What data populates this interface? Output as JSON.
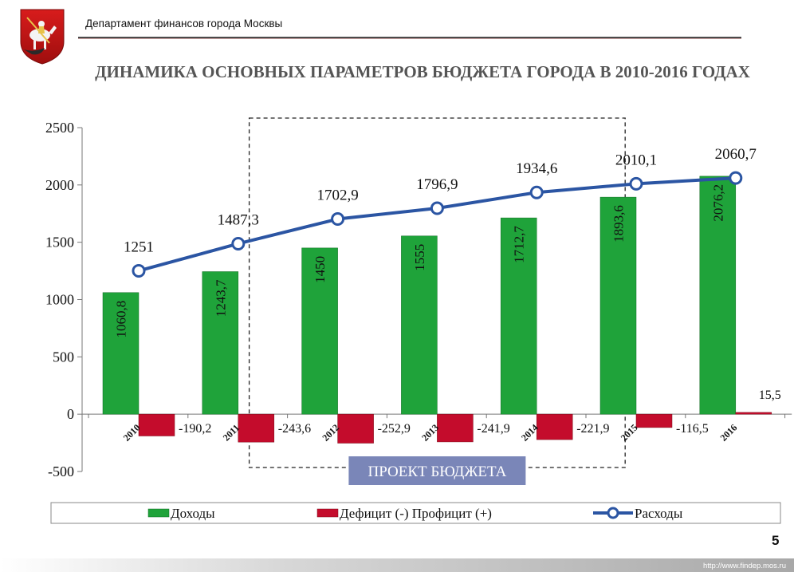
{
  "header": {
    "organization": "Департамент финансов города Москвы",
    "logo_icon": "moscow-coat-of-arms-icon",
    "slide_number": "5",
    "footer_url": "http://www.findep.mos.ru"
  },
  "colors": {
    "income": "#1fa33a",
    "deficit": "#c40c2c",
    "expenses_line": "#2b55a3",
    "projection_box": "#222222"
  },
  "chart_data": {
    "type": "bar",
    "title": "ДИНАМИКА ОСНОВНЫХ ПАРАМЕТРОВ БЮДЖЕТА ГОРОДА В 2010-2016 ГОДАХ",
    "categories": [
      "2010",
      "2011",
      "2012",
      "2013",
      "2014",
      "2015",
      "2016"
    ],
    "series": [
      {
        "name": "Доходы",
        "kind": "bar",
        "color": "#1fa33a",
        "values": [
          1060.8,
          1243.7,
          1450,
          1555,
          1712.7,
          1893.6,
          2076.2
        ],
        "labels": [
          "1060,8",
          "1243,7",
          "1450",
          "1555",
          "1712,7",
          "1893,6",
          "2076,2"
        ]
      },
      {
        "name": "Дефицит (-) Профицит (+)",
        "kind": "bar",
        "color": "#c40c2c",
        "values": [
          -190.2,
          -243.6,
          -252.9,
          -241.9,
          -221.9,
          -116.5,
          15.5
        ],
        "labels": [
          "-190,2",
          "-243,6",
          "-252,9",
          "-241,9",
          "-221,9",
          "-116,5",
          "15,5"
        ]
      },
      {
        "name": "Расходы",
        "kind": "line",
        "color": "#2b55a3",
        "values": [
          1251,
          1487.3,
          1702.9,
          1796.9,
          1934.6,
          2010.1,
          2060.7
        ],
        "labels": [
          "1251",
          "1487,3",
          "1702,9",
          "1796,9",
          "1934,6",
          "2010,1",
          "2060,7"
        ]
      }
    ],
    "ylim": [
      -500,
      2500
    ],
    "yticks": [
      -500,
      0,
      500,
      1000,
      1500,
      2000,
      2500
    ],
    "grid": false,
    "legend_position": "bottom",
    "annotation": {
      "text": "ПРОЕКТ БЮДЖЕТА",
      "covers_categories": [
        "2012",
        "2013",
        "2014"
      ]
    }
  }
}
